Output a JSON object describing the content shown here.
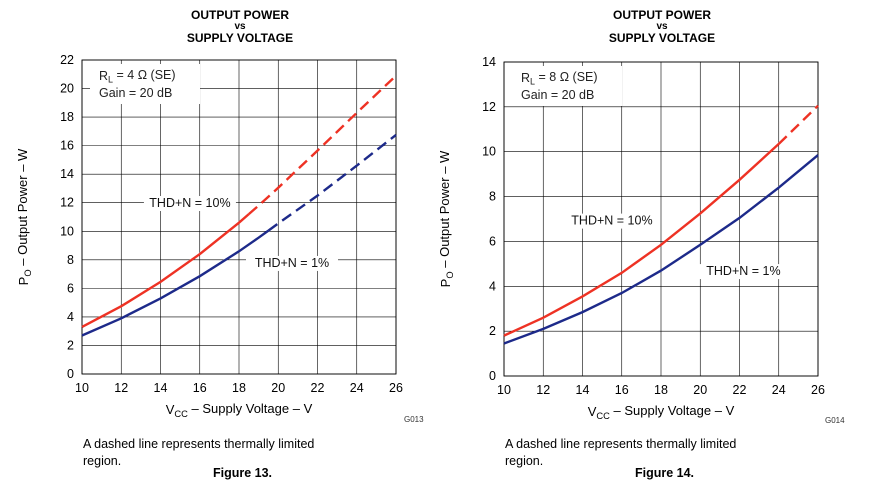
{
  "figures": [
    {
      "title_line1": "OUTPUT POWER",
      "title_line2": "vs",
      "title_line3": "SUPPLY VOLTAGE",
      "code": "G013",
      "caption": "A dashed line represents thermally limited region.",
      "figure_label": "Figure 13.",
      "legend_line1": "R_L = 4 Ω (SE)",
      "legend_line2": "Gain = 20 dB"
    },
    {
      "title_line1": "OUTPUT POWER",
      "title_line2": "vs",
      "title_line3": "SUPPLY VOLTAGE",
      "code": "G014",
      "caption": "A dashed line represents thermally limited region.",
      "figure_label": "Figure 14.",
      "legend_line1": "R_L = 8 Ω (SE)",
      "legend_line2": "Gain = 20 dB"
    }
  ],
  "colors": {
    "thd10": "#ee3224",
    "thd1": "#1d2a8a",
    "grid": "#000000"
  },
  "chart_data": [
    {
      "type": "line",
      "title": "OUTPUT POWER vs SUPPLY VOLTAGE",
      "xlabel": "V_CC – Supply Voltage – V",
      "ylabel": "P_O – Output Power – W",
      "xlim": [
        10,
        26
      ],
      "ylim": [
        0,
        22
      ],
      "xticks": [
        10,
        12,
        14,
        16,
        18,
        20,
        22,
        24,
        26
      ],
      "yticks": [
        0,
        2,
        4,
        6,
        8,
        10,
        12,
        14,
        16,
        18,
        20,
        22
      ],
      "grid": true,
      "series": [
        {
          "name": "THD+N = 10%",
          "color_key": "thd10",
          "x": [
            10,
            12,
            14,
            16,
            18,
            19,
            20,
            22,
            24,
            26
          ],
          "y": [
            3.3,
            4.75,
            6.45,
            8.4,
            10.6,
            11.8,
            13.05,
            15.65,
            18.3,
            20.9
          ],
          "dashed_from_x": 18.5
        },
        {
          "name": "THD+N = 1%",
          "color_key": "thd1",
          "x": [
            10,
            12,
            14,
            16,
            18,
            19,
            20,
            22,
            24,
            26
          ],
          "y": [
            2.7,
            3.9,
            5.3,
            6.85,
            8.6,
            9.55,
            10.55,
            12.5,
            14.6,
            16.75
          ],
          "dashed_from_x": 19.5
        }
      ],
      "labels": [
        {
          "text": "THD+N = 10%",
          "x": 15.5,
          "y": 11.7
        },
        {
          "text": "THD+N = 1%",
          "x": 20.7,
          "y": 7.5
        }
      ]
    },
    {
      "type": "line",
      "title": "OUTPUT POWER vs SUPPLY VOLTAGE",
      "xlabel": "V_CC – Supply Voltage – V",
      "ylabel": "P_O – Output Power – W",
      "xlim": [
        10,
        26
      ],
      "ylim": [
        0,
        14
      ],
      "xticks": [
        10,
        12,
        14,
        16,
        18,
        20,
        22,
        24,
        26
      ],
      "yticks": [
        0,
        2,
        4,
        6,
        8,
        10,
        12,
        14
      ],
      "grid": true,
      "series": [
        {
          "name": "THD+N = 10%",
          "color_key": "thd10",
          "x": [
            10,
            12,
            14,
            16,
            18,
            20,
            22,
            24,
            26
          ],
          "y": [
            1.8,
            2.6,
            3.55,
            4.6,
            5.85,
            7.25,
            8.75,
            10.35,
            12.05
          ],
          "dashed_from_x": 24
        },
        {
          "name": "THD+N = 1%",
          "color_key": "thd1",
          "x": [
            10,
            12,
            14,
            16,
            18,
            20,
            22,
            24,
            26
          ],
          "y": [
            1.45,
            2.1,
            2.85,
            3.7,
            4.7,
            5.85,
            7.05,
            8.4,
            9.85
          ]
        }
      ],
      "labels": [
        {
          "text": "THD+N = 10%",
          "x": 15.5,
          "y": 6.75
        },
        {
          "text": "THD+N = 1%",
          "x": 22.2,
          "y": 4.5
        }
      ]
    }
  ]
}
